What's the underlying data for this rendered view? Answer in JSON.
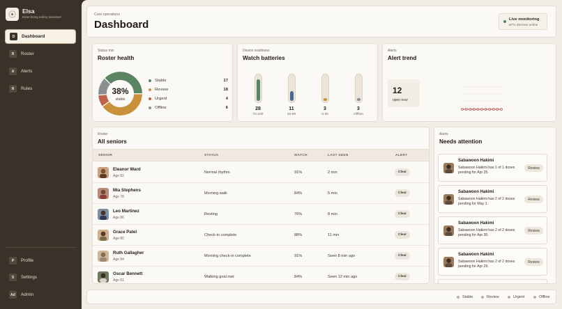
{
  "brand": {
    "title": "Elsa",
    "subtitle": "Elder-living safety assistant"
  },
  "sidebar": {
    "items": [
      {
        "badge": "D",
        "label": "Dashboard",
        "active": true
      },
      {
        "badge": "R",
        "label": "Roster"
      },
      {
        "badge": "A",
        "label": "Alerts"
      },
      {
        "badge": "R",
        "label": "Rules"
      }
    ],
    "bottom_items": [
      {
        "badge": "P",
        "label": "Profile"
      },
      {
        "badge": "S",
        "label": "Settings"
      },
      {
        "badge": "Ad",
        "label": "Admin"
      }
    ]
  },
  "header": {
    "eyebrow": "Care operations",
    "title": "Dashboard",
    "live": {
      "title": "Live monitoring",
      "subtitle": "87% devices online"
    }
  },
  "colors": {
    "stable": "#5a8462",
    "review": "#c9923a",
    "urgent": "#c0624a",
    "offline": "#8c8f92",
    "trend": "#b14a4a"
  },
  "roster_health": {
    "eyebrow": "Status mix",
    "title": "Roster health",
    "center_pct": "38%",
    "center_label": "stable",
    "legend": [
      {
        "name": "Stable",
        "value": 17
      },
      {
        "name": "Review",
        "value": 18
      },
      {
        "name": "Urgent",
        "value": 4
      },
      {
        "name": "Offline",
        "value": 6
      }
    ]
  },
  "batteries": {
    "eyebrow": "Device readiness",
    "title": "Watch batteries",
    "bars": [
      {
        "count": "28",
        "range": "70-100",
        "level": 0.85,
        "color": "#5a8462"
      },
      {
        "count": "11",
        "range": "40-69",
        "level": 0.38,
        "color": "#4a6a92"
      },
      {
        "count": "3",
        "range": "0-39",
        "level": 0.12,
        "color": "#c9923a"
      },
      {
        "count": "3",
        "range": "Offline",
        "level": 0.12,
        "color": "#8c8f92"
      }
    ]
  },
  "alert_trend": {
    "eyebrow": "Alerts",
    "title": "Alert trend",
    "open_count": "12",
    "open_label": "open now",
    "chart_data": {
      "type": "line",
      "values": [
        0,
        0,
        0,
        0,
        0,
        0,
        0,
        0,
        0,
        0,
        0
      ],
      "grid": true
    }
  },
  "roster_table": {
    "eyebrow": "Roster",
    "title": "All seniors",
    "columns": [
      "SENIOR",
      "STATUS",
      "WATCH",
      "LAST SEEN",
      "ALERT"
    ],
    "action_label": "Clear",
    "rows": [
      {
        "name": "Eleanor Ward",
        "age": "Age 82",
        "status": "Normal rhythm",
        "watch": "91%",
        "last_seen": "2 min"
      },
      {
        "name": "Mia Stephens",
        "age": "Age 78",
        "status": "Morning walk",
        "watch": "84%",
        "last_seen": "5 min"
      },
      {
        "name": "Leo Martinez",
        "age": "Age 86",
        "status": "Resting",
        "watch": "76%",
        "last_seen": "8 min"
      },
      {
        "name": "Grace Patel",
        "age": "Age 80",
        "status": "Check-in complete",
        "watch": "88%",
        "last_seen": "11 min"
      },
      {
        "name": "Ruth Gallagher",
        "age": "Age 84",
        "status": "Morning check-in complete",
        "watch": "91%",
        "last_seen": "Seen 8 min ago"
      },
      {
        "name": "Oscar Bennett",
        "age": "Age 81",
        "status": "Walking goal met",
        "watch": "84%",
        "last_seen": "Seen 12 min ago"
      }
    ]
  },
  "needs_attention": {
    "eyebrow": "Alerts",
    "title": "Needs attention",
    "action_label": "Review",
    "items": [
      {
        "name": "Sabawoon Hakimi",
        "message": "Sabawoon Hakimi has 1 of 1 doses pending for Apr 25."
      },
      {
        "name": "Sabawoon Hakimi",
        "message": "Sabawoon Hakimi has 2 of 2 doses pending for May 1."
      },
      {
        "name": "Sabawoon Hakimi",
        "message": "Sabawoon Hakimi has 2 of 2 doses pending for Apr 30."
      },
      {
        "name": "Sabawoon Hakimi",
        "message": "Sabawoon Hakimi has 2 of 2 doses pending for Apr 29."
      }
    ]
  },
  "footer_legend": [
    "Stable",
    "Review",
    "Urgent",
    "Offline"
  ]
}
